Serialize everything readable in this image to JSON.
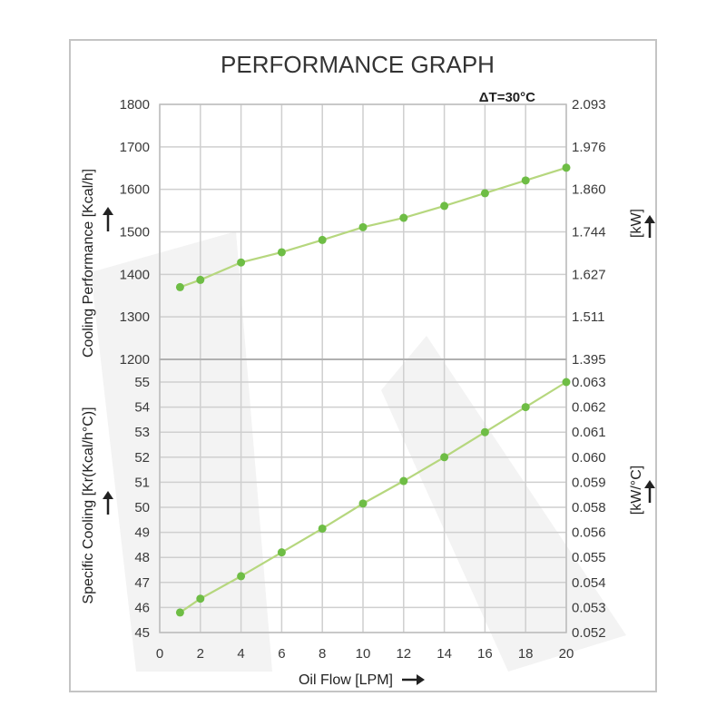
{
  "title": "PERFORMANCE GRAPH",
  "condition": "ΔT=30°C",
  "colors": {
    "series_line": "#b6d77e",
    "series_point": "#6ebd45",
    "grid": "#cfcfcf",
    "frame": "#c4c4c4",
    "text": "#3a3a3a",
    "watermark": "#f2f2f2"
  },
  "chart_data": [
    {
      "type": "line",
      "title": "PERFORMANCE GRAPH",
      "annotation": "ΔT=30°C",
      "xlabel": "Oil Flow [LPM]",
      "ylabel": "Cooling Performance [Kcal/h]",
      "ylabel_right": "[kW]",
      "xlim": [
        0,
        20
      ],
      "ylim": [
        1200,
        1800
      ],
      "x_ticks": [
        "0",
        "2",
        "4",
        "6",
        "8",
        "10",
        "12",
        "14",
        "16",
        "18",
        "20"
      ],
      "y_ticks": [
        "1800",
        "1700",
        "1600",
        "1500",
        "1400",
        "1300",
        "1200"
      ],
      "y_ticks_right": [
        "2.093",
        "1.976",
        "1.860",
        "1.744",
        "1.627",
        "1.511",
        "1.395"
      ],
      "grid": true,
      "series": [
        {
          "x": [
            1,
            2,
            4,
            6,
            8,
            10,
            12,
            14,
            16,
            18,
            20
          ],
          "values": [
            1370,
            1387,
            1428,
            1452,
            1481,
            1511,
            1533,
            1561,
            1591,
            1621,
            1651
          ]
        }
      ]
    },
    {
      "type": "line",
      "xlabel": "Oil Flow [LPM]",
      "ylabel": "Specific Cooling [Kr(Kcal/h°C)]",
      "ylabel_right": "[kW/°C]",
      "xlim": [
        0,
        20
      ],
      "ylim": [
        45,
        55
      ],
      "x_ticks": [
        "0",
        "2",
        "4",
        "6",
        "8",
        "10",
        "12",
        "14",
        "16",
        "18",
        "20"
      ],
      "y_ticks": [
        "55",
        "54",
        "53",
        "52",
        "51",
        "50",
        "49",
        "48",
        "47",
        "46",
        "45"
      ],
      "y_ticks_right": [
        "0.063",
        "0.062",
        "0.061",
        "0.060",
        "0.059",
        "0.058",
        "0.056",
        "0.055",
        "0.054",
        "0.053",
        "0.052"
      ],
      "grid": true,
      "series": [
        {
          "x": [
            1,
            2,
            4,
            6,
            8,
            10,
            12,
            14,
            16,
            18,
            20
          ],
          "values": [
            45.8,
            46.35,
            47.25,
            48.2,
            49.15,
            50.15,
            51.05,
            52.0,
            53.0,
            54.0,
            55.0
          ]
        }
      ]
    }
  ]
}
